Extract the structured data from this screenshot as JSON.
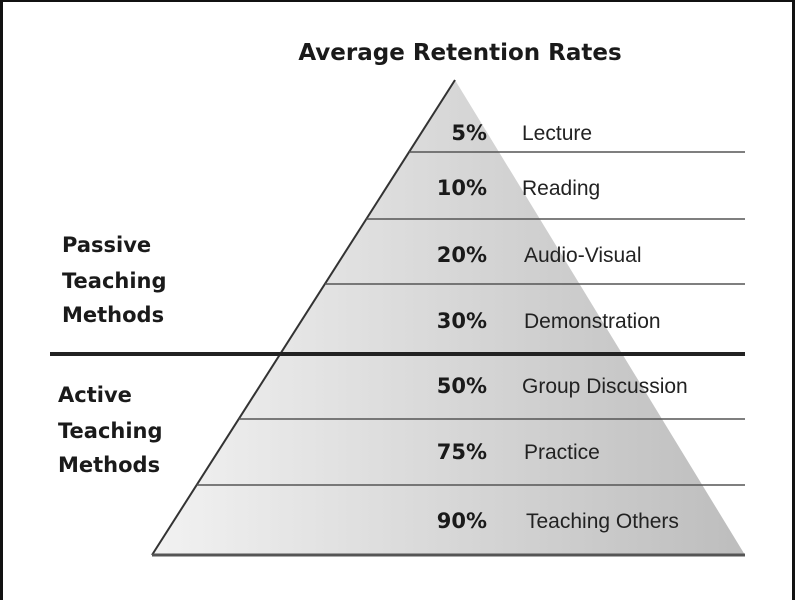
{
  "title": "Average Retention Rates",
  "groups": [
    {
      "label_lines": [
        "Passive",
        "Teaching",
        "Methods"
      ]
    },
    {
      "label_lines": [
        "Active",
        "Teaching",
        "Methods"
      ]
    }
  ],
  "levels": [
    {
      "percent": "5%",
      "method": "Lecture"
    },
    {
      "percent": "10%",
      "method": "Reading"
    },
    {
      "percent": "20%",
      "method": "Audio-Visual"
    },
    {
      "percent": "30%",
      "method": "Demonstration"
    },
    {
      "percent": "50%",
      "method": "Group Discussion"
    },
    {
      "percent": "75%",
      "method": "Practice"
    },
    {
      "percent": "90%",
      "method": "Teaching Others"
    }
  ],
  "colors": {
    "pyramid_light": "#f2f2f2",
    "pyramid_dark": "#bdbdbd",
    "lines": "#555555",
    "divider": "#222222"
  }
}
